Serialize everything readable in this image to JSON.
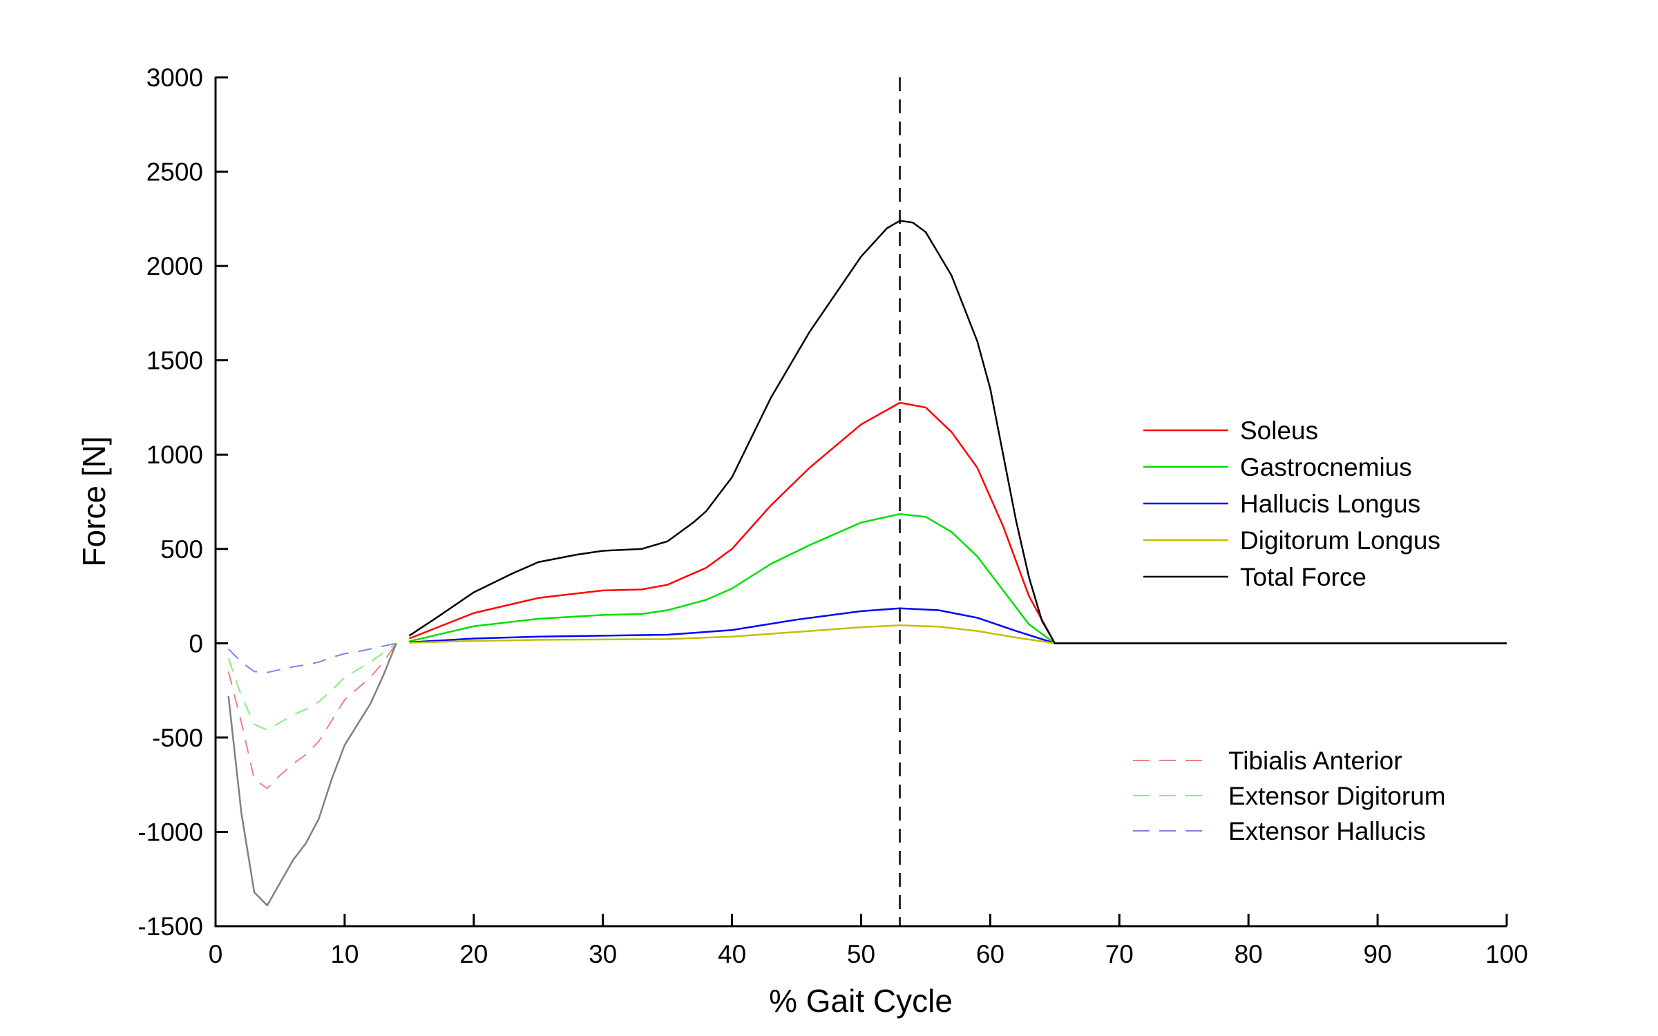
{
  "chart_data": {
    "type": "line",
    "xlabel": "% Gait Cycle",
    "ylabel": "Force [N]",
    "xlim": [
      0,
      100
    ],
    "ylim": [
      -1500,
      3000
    ],
    "xticks": [
      0,
      10,
      20,
      30,
      40,
      50,
      60,
      70,
      80,
      90,
      100
    ],
    "yticks": [
      -1500,
      -1000,
      -500,
      0,
      500,
      1000,
      1500,
      2000,
      2500,
      3000
    ],
    "grid": false,
    "vertical_marker_x": 53,
    "legend_placement": "right",
    "series": [
      {
        "name": "Soleus",
        "color": "#ff0000",
        "style": "solid",
        "x": [
          15,
          20,
          25,
          30,
          33,
          35,
          38,
          40,
          43,
          46,
          50,
          53,
          55,
          57,
          59,
          61,
          63,
          65,
          100
        ],
        "y": [
          25,
          160,
          240,
          280,
          285,
          310,
          400,
          500,
          730,
          930,
          1160,
          1275,
          1250,
          1120,
          930,
          620,
          250,
          0,
          0
        ]
      },
      {
        "name": "Gastrocnemius",
        "color": "#00e000",
        "style": "solid",
        "x": [
          15,
          20,
          25,
          30,
          33,
          35,
          38,
          40,
          43,
          46,
          50,
          53,
          55,
          57,
          59,
          61,
          63,
          65,
          100
        ],
        "y": [
          10,
          90,
          130,
          150,
          155,
          175,
          230,
          290,
          420,
          520,
          640,
          685,
          670,
          590,
          460,
          280,
          100,
          0,
          0
        ]
      },
      {
        "name": "Hallucis Longus",
        "color": "#0000ff",
        "style": "solid",
        "x": [
          15,
          20,
          25,
          30,
          35,
          40,
          45,
          50,
          53,
          56,
          59,
          62,
          65,
          100
        ],
        "y": [
          5,
          25,
          35,
          40,
          45,
          70,
          125,
          170,
          185,
          175,
          135,
          65,
          0,
          0
        ]
      },
      {
        "name": "Digitorum Longus",
        "color": "#c0c000",
        "style": "solid",
        "x": [
          15,
          20,
          25,
          30,
          35,
          40,
          45,
          50,
          53,
          56,
          59,
          62,
          65,
          100
        ],
        "y": [
          3,
          12,
          18,
          20,
          22,
          35,
          60,
          85,
          95,
          88,
          65,
          30,
          0,
          0
        ]
      },
      {
        "name": "Total Force",
        "color": "#000000",
        "style": "solid",
        "x": [
          15,
          17,
          20,
          23,
          25,
          28,
          30,
          33,
          35,
          37,
          38,
          40,
          43,
          46,
          50,
          52,
          53,
          54,
          55,
          57,
          59,
          60,
          61,
          62,
          63,
          64,
          65,
          100
        ],
        "y": [
          40,
          130,
          270,
          370,
          430,
          470,
          490,
          500,
          540,
          640,
          700,
          880,
          1300,
          1650,
          2050,
          2200,
          2240,
          2230,
          2180,
          1950,
          1600,
          1350,
          1000,
          650,
          350,
          120,
          0,
          0
        ]
      },
      {
        "name": "Tibialis Anterior",
        "color": "#f08080",
        "style": "dashed",
        "x": [
          1,
          2,
          3,
          4,
          5,
          6,
          7,
          8,
          9,
          10,
          11,
          12,
          13,
          14
        ],
        "y": [
          -150,
          -420,
          -720,
          -770,
          -700,
          -640,
          -590,
          -520,
          -410,
          -300,
          -240,
          -180,
          -100,
          0
        ]
      },
      {
        "name": "Extensor Digitorum",
        "color": "#80f080",
        "style": "dashed",
        "x": [
          1,
          2,
          3,
          4,
          5,
          6,
          7,
          8,
          9,
          10,
          11,
          12,
          13,
          14
        ],
        "y": [
          -80,
          -280,
          -430,
          -460,
          -420,
          -380,
          -350,
          -310,
          -250,
          -180,
          -140,
          -100,
          -50,
          0
        ]
      },
      {
        "name": "Extensor Hallucis",
        "color": "#8080f0",
        "style": "dashed",
        "x": [
          1,
          2,
          3,
          4,
          5,
          6,
          7,
          8,
          9,
          10,
          11,
          12,
          13,
          14
        ],
        "y": [
          -30,
          -100,
          -150,
          -155,
          -140,
          -125,
          -115,
          -100,
          -75,
          -55,
          -45,
          -30,
          -15,
          0
        ]
      },
      {
        "color": "#808080",
        "style": "solid",
        "x": [
          1,
          2,
          3,
          4,
          5,
          6,
          7,
          8,
          9,
          10,
          11,
          12,
          13,
          14
        ],
        "y": [
          -280,
          -900,
          -1320,
          -1390,
          -1270,
          -1150,
          -1060,
          -930,
          -720,
          -540,
          -430,
          -320,
          -170,
          0
        ]
      }
    ]
  }
}
